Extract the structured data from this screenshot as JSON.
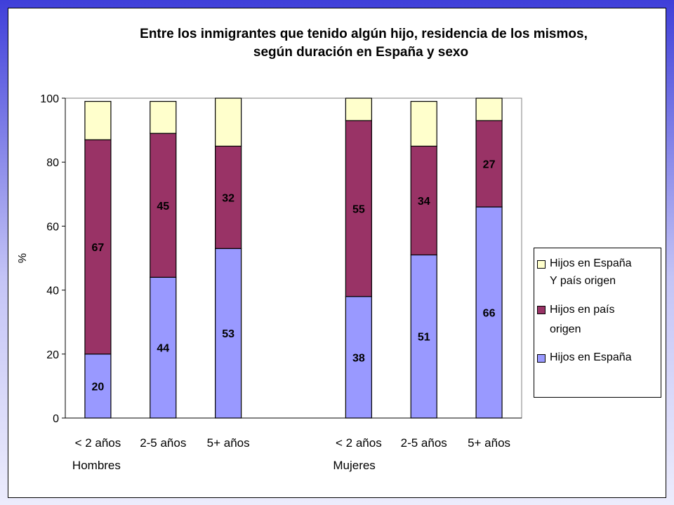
{
  "colors": {
    "espana": "#9999ff",
    "pais_origen": "#993366",
    "ambos": "#ffffcc",
    "plot_border": "#808080",
    "background_top": "#3f3fd9",
    "background_bottom": "#ececfc"
  },
  "chart_data": {
    "type": "bar",
    "stacked": true,
    "title": "Entre los inmigrantes que tenido algún hijo, residencia de los mismos, según duración en España y sexo",
    "title_lines": [
      "Entre los inmigrantes que tenido algún hijo, residencia de los mismos,",
      "según duración en España y sexo"
    ],
    "ylabel": "%",
    "ylim": [
      0,
      100
    ],
    "yticks": [
      "0",
      "20",
      "40",
      "60",
      "80",
      "100"
    ],
    "grid": false,
    "legend_position": "right",
    "groups": [
      {
        "label": "Hombres",
        "categories": [
          "< 2 años",
          "2-5 años",
          "5+ años"
        ]
      },
      {
        "label": "Mujeres",
        "categories": [
          "< 2 años",
          "2-5 años",
          "5+ años"
        ]
      }
    ],
    "categories": [
      "< 2 años",
      "2-5 años",
      "5+ años",
      "< 2 años",
      "2-5 años",
      "5+ años"
    ],
    "series": [
      {
        "name": "Hijos en España",
        "key": "espana",
        "values": [
          20,
          44,
          53,
          38,
          51,
          66
        ],
        "labels": [
          "20",
          "44",
          "53",
          "38",
          "51",
          "66"
        ]
      },
      {
        "name": "Hijos en país origen",
        "key": "pais_origen",
        "values": [
          67,
          45,
          32,
          55,
          34,
          27
        ],
        "labels": [
          "67",
          "45",
          "32",
          "55",
          "34",
          "27"
        ]
      },
      {
        "name": "Hijos en España Y país origen",
        "key": "ambos",
        "values": [
          12,
          10,
          15,
          7,
          14,
          8
        ]
      }
    ]
  },
  "legend": {
    "items": [
      {
        "key": "ambos",
        "lines": [
          "Hijos en España",
          "Y país origen"
        ]
      },
      {
        "key": "pais_origen",
        "lines": [
          "Hijos en país",
          "origen"
        ]
      },
      {
        "key": "espana",
        "lines": [
          "Hijos en España"
        ]
      }
    ]
  }
}
